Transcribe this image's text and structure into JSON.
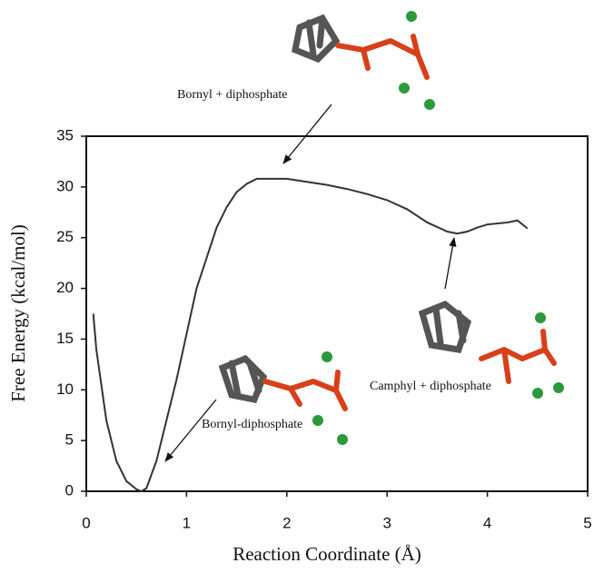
{
  "chart_data": {
    "type": "line",
    "xlabel": "Reaction Coordinate (Å)",
    "ylabel": "Free Energy (kcal/mol)",
    "xlim": [
      0,
      5
    ],
    "xticks": [
      0,
      1,
      2,
      3,
      4,
      5
    ],
    "ylim": [
      0,
      35
    ],
    "yticks": [
      0,
      5,
      10,
      15,
      20,
      25,
      30,
      35
    ],
    "series": [
      {
        "color": "#333333",
        "x": [
          0.07,
          0.1,
          0.2,
          0.3,
          0.4,
          0.5,
          0.55,
          0.6,
          0.7,
          0.8,
          0.9,
          1.0,
          1.1,
          1.2,
          1.3,
          1.4,
          1.5,
          1.6,
          1.7,
          1.8,
          2.0,
          2.2,
          2.4,
          2.6,
          2.8,
          3.0,
          3.2,
          3.4,
          3.6,
          3.7,
          3.8,
          3.9,
          4.0,
          4.2,
          4.3,
          4.4
        ],
        "values": [
          17.5,
          14,
          7,
          3,
          1,
          0.2,
          0,
          0.3,
          3,
          7,
          11,
          15.5,
          20,
          23,
          26,
          28,
          29.5,
          30.3,
          30.8,
          30.8,
          30.8,
          30.5,
          30.2,
          29.8,
          29.3,
          28.7,
          27.8,
          26.5,
          25.6,
          25.4,
          25.6,
          26,
          26.3,
          26.5,
          26.7,
          25.9
        ]
      }
    ],
    "annotations": [
      "Bornyl + diphosphate",
      "Bornyl-diphosphate",
      "Camphyl + diphosphate"
    ]
  }
}
